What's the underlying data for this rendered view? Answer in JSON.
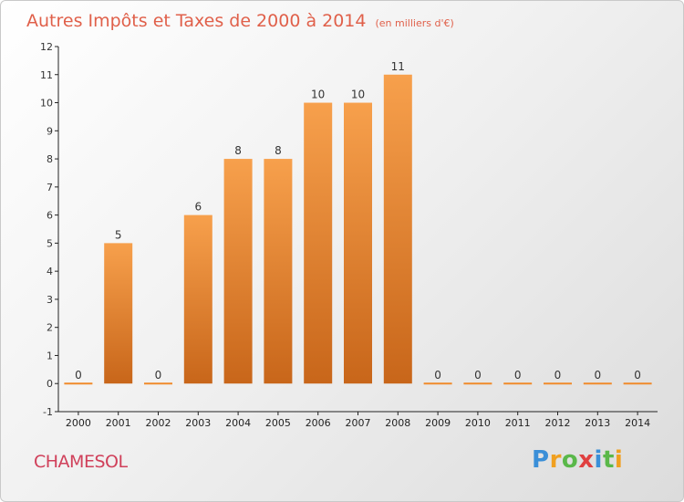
{
  "chart_data": {
    "type": "bar",
    "title": "Autres Impôts et Taxes de 2000 à 2014",
    "unit": "(en milliers d'€)",
    "categories": [
      "2000",
      "2001",
      "2002",
      "2003",
      "2004",
      "2005",
      "2006",
      "2007",
      "2008",
      "2009",
      "2010",
      "2011",
      "2012",
      "2013",
      "2014"
    ],
    "values": [
      0,
      5,
      0,
      6,
      8,
      8,
      10,
      10,
      11,
      0,
      0,
      0,
      0,
      0,
      0
    ],
    "ylim": [
      -1,
      12
    ],
    "yticks": [
      -1,
      0,
      1,
      2,
      3,
      4,
      5,
      6,
      7,
      8,
      9,
      10,
      11,
      12
    ],
    "grid": false,
    "bar_color": "#f08b2c"
  },
  "commune": "CHAMESOL",
  "logo": {
    "letters": [
      "P",
      "r",
      "o",
      "x",
      "i",
      "t",
      "i"
    ],
    "colors": [
      "#3a8fd8",
      "#f0a020",
      "#5ab84a",
      "#e04040",
      "#3a8fd8",
      "#5ab84a",
      "#f0a020"
    ]
  }
}
